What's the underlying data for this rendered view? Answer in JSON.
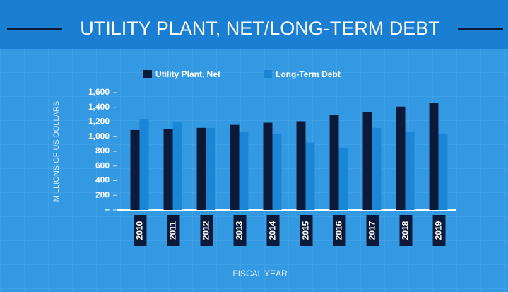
{
  "chart_data": {
    "type": "bar",
    "title": "UTILITY PLANT, NET/LONG-TERM DEBT",
    "y_label": "MILLIONS OF US DOLLARS",
    "x_label": "FISCAL YEAR",
    "categories": [
      "2010",
      "2011",
      "2012",
      "2013",
      "2014",
      "2015",
      "2016",
      "2017",
      "2018",
      "2019"
    ],
    "series": [
      {
        "name": "Utility Plant, Net",
        "color": "#0c1a3a",
        "values": [
          1090,
          1100,
          1120,
          1160,
          1190,
          1210,
          1300,
          1330,
          1410,
          1460
        ]
      },
      {
        "name": "Long-Term Debt",
        "color": "#1b86d6",
        "values": [
          1240,
          1200,
          1120,
          1060,
          1040,
          920,
          850,
          1120,
          1060,
          1030
        ]
      }
    ],
    "ylim": [
      0,
      1600
    ],
    "yticks": [
      {
        "value": 0,
        "label": "–"
      },
      200,
      400,
      600,
      800,
      {
        "value": 1000,
        "label": "1,000"
      },
      {
        "value": 1200,
        "label": "1,200"
      },
      {
        "value": 1400,
        "label": "1,400"
      },
      {
        "value": 1600,
        "label": "1,600"
      }
    ],
    "legend": "top"
  }
}
